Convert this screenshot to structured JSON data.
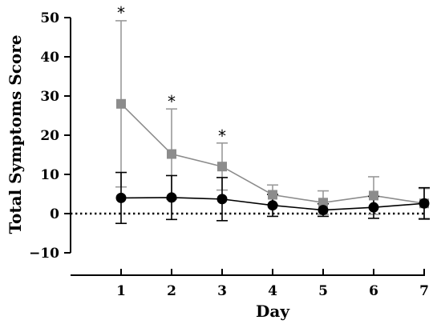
{
  "chart_data": {
    "type": "line",
    "xlabel": "Day",
    "ylabel": "Total Symptoms  Score",
    "x": [
      1,
      2,
      3,
      4,
      5,
      6,
      7
    ],
    "x_ticks": [
      "1",
      "2",
      "3",
      "4",
      "5",
      "6",
      "7"
    ],
    "xlim": [
      0,
      7
    ],
    "ylim": [
      -10,
      50
    ],
    "y_ticks": [
      "−10",
      "0",
      "10",
      "20",
      "30",
      "40",
      "50"
    ],
    "y_tick_values": [
      -10,
      0,
      10,
      20,
      30,
      40,
      50
    ],
    "reference_line": {
      "y": 0,
      "style": "dotted"
    },
    "grid": false,
    "legend": "none",
    "series": [
      {
        "marker": "square",
        "color": "#8c8c8c",
        "values": [
          28,
          15.2,
          12,
          4.8,
          2.8,
          4.6,
          2.6
        ],
        "error": [
          21.2,
          11.5,
          6,
          2.5,
          3,
          4.8,
          3.8
        ]
      },
      {
        "marker": "circle",
        "color": "#000000",
        "values": [
          4,
          4.1,
          3.7,
          2.1,
          0.9,
          1.6,
          2.6
        ],
        "error": [
          6.5,
          5.6,
          5.5,
          2.8,
          1.6,
          2.8,
          4
        ]
      }
    ],
    "annotations": [
      {
        "text": "*",
        "x": 1,
        "y": 49.4
      },
      {
        "text": "*",
        "x": 2,
        "y": 26.7
      },
      {
        "text": "*",
        "x": 3,
        "y": 18
      }
    ]
  }
}
